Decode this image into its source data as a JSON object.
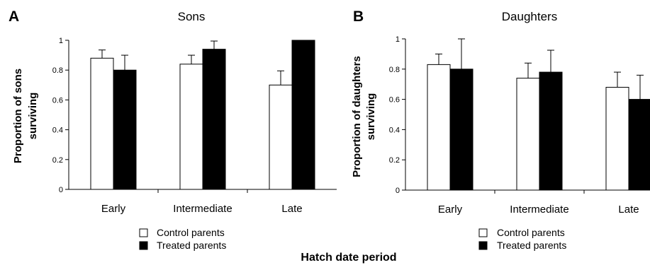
{
  "figure_xlabel": "Hatch date period",
  "chart_data": [
    {
      "type": "bar",
      "panel_label": "A",
      "title": "Sons",
      "ylabel_lines": [
        "Proportion of sons",
        "surviving"
      ],
      "categories": [
        "Early",
        "Intermediate",
        "Late"
      ],
      "ylim": [
        0,
        1
      ],
      "yticks": [
        "0",
        "0.2",
        "0.4",
        "0.6",
        "0.8",
        "1"
      ],
      "series": [
        {
          "name": "Control parents",
          "color": "#ffffff",
          "values": [
            0.88,
            0.84,
            0.7
          ],
          "errors": [
            0.055,
            0.06,
            0.095
          ]
        },
        {
          "name": "Treated parents",
          "color": "#000000",
          "values": [
            0.8,
            0.94,
            1.0
          ],
          "errors": [
            0.1,
            0.055,
            0.0
          ]
        }
      ],
      "legend": [
        "Control parents",
        "Treated parents"
      ],
      "grid": false
    },
    {
      "type": "bar",
      "panel_label": "B",
      "title": "Daughters",
      "ylabel_lines": [
        "Proportion of daughters",
        "surviving"
      ],
      "categories": [
        "Early",
        "Intermediate",
        "Late"
      ],
      "ylim": [
        0,
        1
      ],
      "yticks": [
        "0",
        "0.2",
        "0.4",
        "0.6",
        "0.8",
        "1"
      ],
      "series": [
        {
          "name": "Control parents",
          "color": "#ffffff",
          "values": [
            0.83,
            0.74,
            0.68
          ],
          "errors": [
            0.07,
            0.1,
            0.1
          ]
        },
        {
          "name": "Treated parents",
          "color": "#000000",
          "values": [
            0.8,
            0.78,
            0.6
          ],
          "errors": [
            0.2,
            0.145,
            0.16
          ]
        }
      ],
      "legend": [
        "Control parents",
        "Treated parents"
      ],
      "grid": false
    }
  ]
}
